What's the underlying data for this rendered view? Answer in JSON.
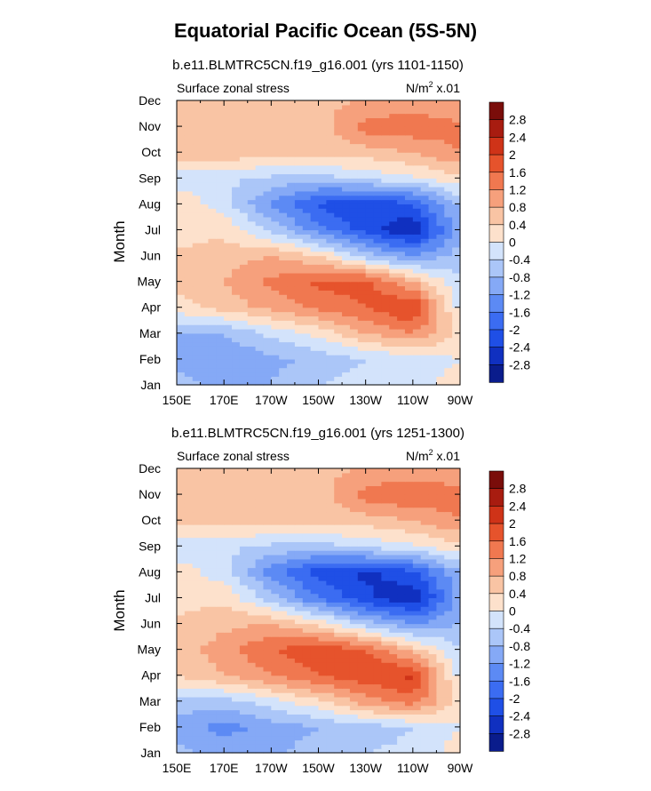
{
  "title": "Equatorial Pacific Ocean (5S-5N)",
  "colors": {
    "levels": [
      -2.8,
      -2.4,
      -2.0,
      -1.6,
      -1.2,
      -0.8,
      -0.4,
      0,
      0.4,
      0.8,
      1.2,
      1.6,
      2.0,
      2.4,
      2.8
    ],
    "fills": [
      "#0a1c8c",
      "#1030c0",
      "#1f4fe6",
      "#3b6cf2",
      "#5c8af4",
      "#85a9f6",
      "#abc6f8",
      "#d3e3fb",
      "#fde1cc",
      "#f9c4a4",
      "#f6a07c",
      "#f07850",
      "#e6532c",
      "#cf3318",
      "#a81c10",
      "#7a0d0a"
    ]
  },
  "panels": [
    {
      "subtitle": "b.e11.BLMTRC5CN.f19_g16.001 (yrs 1101-1150)",
      "left_label": "Surface zonal stress",
      "units_label": "N/m",
      "units_sup": "2",
      "units_scale": " x.01"
    },
    {
      "subtitle": "b.e11.BLMTRC5CN.f19_g16.001 (yrs 1251-1300)",
      "left_label": "Surface zonal stress",
      "units_label": "N/m",
      "units_sup": "2",
      "units_scale": " x.01"
    }
  ],
  "colorbar_labels": [
    "2.8",
    "2.4",
    "2",
    "1.6",
    "1.2",
    "0.8",
    "0.4",
    "0",
    "-0.4",
    "-0.8",
    "-1.2",
    "-1.6",
    "-2",
    "-2.4",
    "-2.8"
  ],
  "chart_data": [
    {
      "type": "heatmap",
      "title": "b.e11.BLMTRC5CN.f19_g16.001 (yrs 1101-1150)",
      "variable": "Surface zonal stress",
      "units": "N/m^2 x.01",
      "xlabel": "",
      "ylabel": "Month",
      "x": [
        150,
        170,
        190,
        210,
        230,
        250,
        270
      ],
      "x_tick_labels": [
        "150E",
        "170E",
        "170W",
        "150W",
        "130W",
        "110W",
        "90W"
      ],
      "y": [
        "Jan",
        "Feb",
        "Mar",
        "Apr",
        "May",
        "Jun",
        "Jul",
        "Aug",
        "Sep",
        "Oct",
        "Nov",
        "Dec"
      ],
      "values": [
        [
          -0.6,
          -0.9,
          -0.8,
          -0.4,
          -0.2,
          -0.3,
          0.3
        ],
        [
          -1.0,
          -1.2,
          -0.9,
          -0.7,
          -0.4,
          -0.3,
          0.0
        ],
        [
          -0.8,
          -0.8,
          -0.3,
          0.1,
          0.8,
          1.2,
          0.3
        ],
        [
          0.2,
          0.6,
          0.9,
          1.3,
          1.6,
          2.1,
          -0.2
        ],
        [
          0.6,
          0.8,
          1.3,
          1.7,
          1.8,
          0.8,
          -0.4
        ],
        [
          0.5,
          0.6,
          0.8,
          0.4,
          -0.6,
          -1.2,
          -0.6
        ],
        [
          0.2,
          0.3,
          -0.5,
          -1.4,
          -2.2,
          -2.8,
          -0.9
        ],
        [
          0.3,
          -0.2,
          -1.3,
          -2.1,
          -2.4,
          -2.0,
          -0.7
        ],
        [
          -0.2,
          -0.3,
          -0.5,
          -0.6,
          -0.3,
          -0.1,
          0.3
        ],
        [
          0.6,
          0.7,
          0.6,
          0.6,
          0.6,
          0.8,
          1.2
        ],
        [
          0.8,
          0.7,
          0.6,
          0.6,
          1.4,
          1.5,
          1.3
        ],
        [
          0.4,
          0.5,
          0.6,
          0.7,
          0.8,
          0.9,
          0.8
        ]
      ],
      "colorbar_levels": [
        -2.8,
        -2.4,
        -2.0,
        -1.6,
        -1.2,
        -0.8,
        -0.4,
        0,
        0.4,
        0.8,
        1.2,
        1.6,
        2.0,
        2.4,
        2.8
      ]
    },
    {
      "type": "heatmap",
      "title": "b.e11.BLMTRC5CN.f19_g16.001 (yrs 1251-1300)",
      "variable": "Surface zonal stress",
      "units": "N/m^2 x.01",
      "xlabel": "",
      "ylabel": "Month",
      "x": [
        150,
        170,
        190,
        210,
        230,
        250,
        270
      ],
      "x_tick_labels": [
        "150E",
        "170E",
        "170W",
        "150W",
        "130W",
        "110W",
        "90W"
      ],
      "y": [
        "Jan",
        "Feb",
        "Mar",
        "Apr",
        "May",
        "Jun",
        "Jul",
        "Aug",
        "Sep",
        "Oct",
        "Nov",
        "Dec"
      ],
      "values": [
        [
          -0.7,
          -0.9,
          -0.9,
          -0.6,
          -0.4,
          -0.3,
          0.2
        ],
        [
          -1.0,
          -1.4,
          -1.0,
          -0.8,
          -0.6,
          -0.4,
          0.0
        ],
        [
          -0.5,
          -0.6,
          -0.2,
          0.3,
          1.0,
          1.4,
          0.2
        ],
        [
          0.4,
          0.8,
          1.2,
          1.6,
          1.9,
          2.1,
          -0.2
        ],
        [
          0.6,
          1.0,
          1.6,
          1.9,
          1.6,
          0.6,
          -0.4
        ],
        [
          0.5,
          0.7,
          0.8,
          0.3,
          -0.6,
          -1.2,
          -0.8
        ],
        [
          0.2,
          0.3,
          -0.6,
          -1.6,
          -2.3,
          -2.8,
          -1.0
        ],
        [
          0.2,
          -0.2,
          -1.4,
          -2.2,
          -2.5,
          -2.1,
          -0.8
        ],
        [
          -0.3,
          -0.3,
          -0.5,
          -0.6,
          -0.3,
          -0.1,
          0.3
        ],
        [
          0.5,
          0.6,
          0.6,
          0.6,
          0.6,
          0.8,
          1.2
        ],
        [
          0.8,
          0.7,
          0.6,
          0.6,
          1.4,
          1.6,
          1.4
        ],
        [
          0.4,
          0.5,
          0.6,
          0.7,
          0.8,
          0.9,
          0.8
        ]
      ],
      "colorbar_levels": [
        -2.8,
        -2.4,
        -2.0,
        -1.6,
        -1.2,
        -0.8,
        -0.4,
        0,
        0.4,
        0.8,
        1.2,
        1.6,
        2.0,
        2.4,
        2.8
      ]
    }
  ]
}
